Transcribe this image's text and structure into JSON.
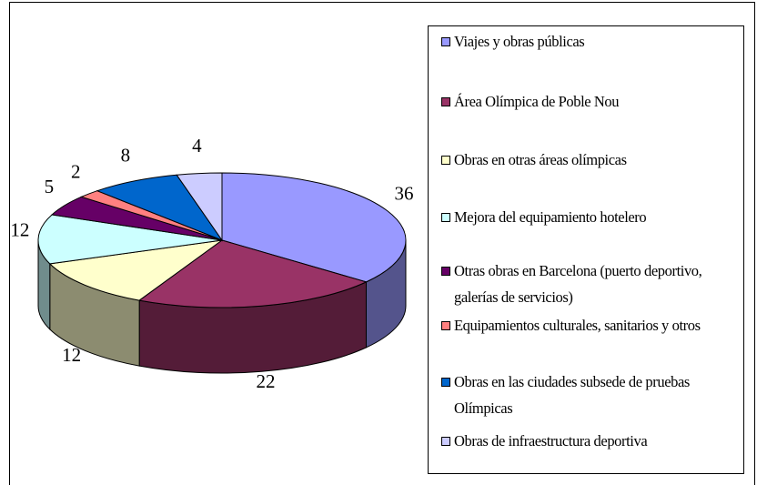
{
  "chart_data": {
    "type": "pie",
    "categories": [
      "Viajes y obras públicas",
      "Área Olímpica de Poble Nou",
      "Obras en otras áreas olímpicas",
      "Mejora del equipamiento hotelero",
      "Otras obras en Barcelona (puerto deportivo, galerías de servicios)",
      "Equipamientos culturales, sanitarios y otros",
      "Obras en las ciudades subsede de pruebas Olímpicas",
      "Obras de infraestructura deportiva"
    ],
    "values": [
      36,
      22,
      12,
      12,
      5,
      2,
      8,
      4
    ],
    "colors": [
      "#9999ff",
      "#993366",
      "#ffffcc",
      "#ccffff",
      "#660066",
      "#ff8080",
      "#0066cc",
      "#ccccff"
    ],
    "legend": "right"
  }
}
